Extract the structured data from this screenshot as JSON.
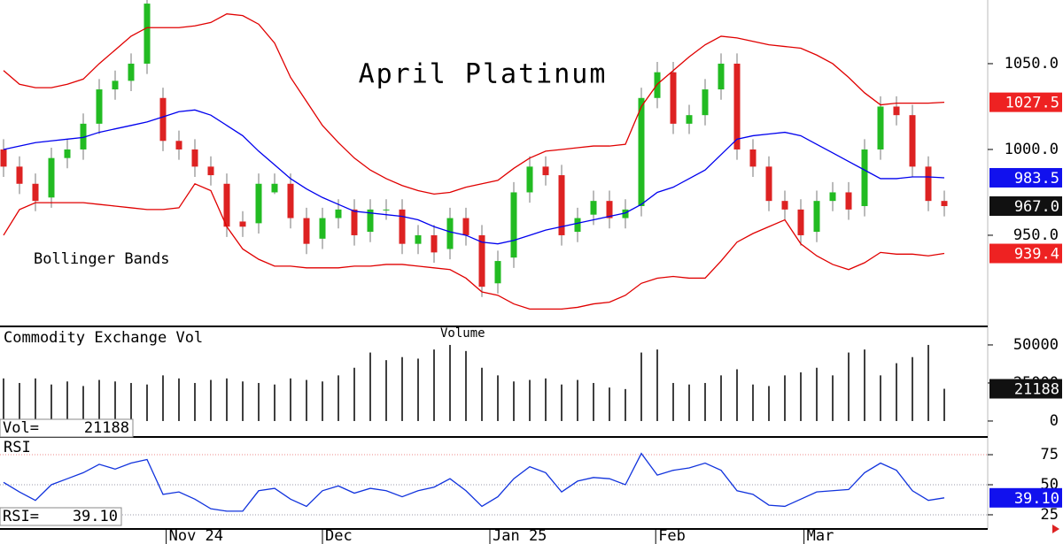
{
  "chart_data": [
    {
      "type": "candlestick",
      "title": "April Platinum",
      "annotation": "Bollinger Bands",
      "open": [
        1000,
        990,
        980,
        972,
        995,
        1000,
        1015,
        1035,
        1040,
        1050,
        1030,
        1005,
        1000,
        990,
        980,
        958,
        957,
        975,
        980,
        960,
        948,
        960,
        965,
        952,
        965,
        965,
        945,
        950,
        942,
        960,
        950,
        922,
        937,
        975,
        990,
        985,
        952,
        962,
        970,
        960,
        967,
        1030,
        1045,
        1015,
        1020,
        1035,
        1050,
        1000,
        990,
        970,
        965,
        952,
        970,
        975,
        967,
        1000,
        1025,
        1020,
        990,
        970
      ],
      "high": [
        1006,
        996,
        986,
        1001,
        1006,
        1021,
        1041,
        1046,
        1056,
        1091,
        1036,
        1011,
        1006,
        996,
        986,
        964,
        986,
        986,
        986,
        966,
        966,
        971,
        971,
        971,
        971,
        971,
        956,
        956,
        966,
        966,
        956,
        941,
        981,
        996,
        996,
        991,
        966,
        976,
        976,
        971,
        1036,
        1051,
        1051,
        1026,
        1041,
        1056,
        1056,
        1006,
        996,
        976,
        971,
        976,
        981,
        981,
        1006,
        1031,
        1031,
        1026,
        996,
        976
      ],
      "low": [
        984,
        974,
        964,
        966,
        989,
        994,
        1009,
        1029,
        1034,
        1044,
        999,
        994,
        984,
        979,
        949,
        949,
        951,
        974,
        954,
        939,
        942,
        954,
        944,
        946,
        959,
        939,
        939,
        934,
        936,
        944,
        914,
        916,
        931,
        969,
        979,
        944,
        946,
        956,
        954,
        954,
        961,
        1024,
        1009,
        1009,
        1014,
        1029,
        994,
        984,
        964,
        959,
        944,
        946,
        964,
        959,
        961,
        994,
        1014,
        984,
        964,
        961
      ],
      "close": [
        990,
        980,
        970,
        995,
        1000,
        1015,
        1035,
        1040,
        1050,
        1085,
        1005,
        1000,
        990,
        985,
        955,
        955,
        980,
        980,
        960,
        945,
        960,
        965,
        950,
        965,
        965,
        945,
        950,
        940,
        960,
        950,
        920,
        935,
        975,
        990,
        985,
        950,
        960,
        970,
        960,
        965,
        1030,
        1045,
        1015,
        1020,
        1035,
        1050,
        1000,
        990,
        970,
        965,
        950,
        970,
        975,
        965,
        1000,
        1025,
        1020,
        990,
        970,
        967
      ],
      "up_color": "#22bb22",
      "down_color": "#dd2222",
      "series": [
        {
          "color": "#e00000",
          "values": [
            1046,
            1038,
            1036,
            1036,
            1038,
            1041,
            1050,
            1058,
            1066,
            1071,
            1071,
            1071,
            1072,
            1074,
            1079,
            1078,
            1073,
            1062,
            1042,
            1028,
            1014,
            1004,
            995,
            988,
            983,
            979,
            976,
            974,
            975,
            978,
            980,
            982,
            989,
            995,
            999,
            1000,
            1001,
            1002,
            1002,
            1003,
            1025,
            1038,
            1046,
            1054,
            1061,
            1066,
            1065,
            1063,
            1061,
            1060,
            1059,
            1055,
            1050,
            1042,
            1033,
            1026,
            1027,
            1027,
            1027,
            1027.5
          ]
        },
        {
          "color": "#0000ee",
          "values": [
            1000,
            1002,
            1004,
            1005,
            1006,
            1007,
            1010,
            1012,
            1014,
            1016,
            1019,
            1022,
            1023,
            1020,
            1014,
            1008,
            999,
            991,
            983,
            977,
            972,
            968,
            964,
            963,
            962,
            961,
            959,
            955,
            952,
            950,
            946,
            945,
            947,
            950,
            953,
            955,
            957,
            959,
            961,
            963,
            968,
            975,
            978,
            983,
            988,
            997,
            1006,
            1008,
            1009,
            1010,
            1008,
            1003,
            998,
            993,
            988,
            983,
            983,
            984,
            984,
            983.5
          ]
        },
        {
          "color": "#e00000",
          "values": [
            950,
            965,
            969,
            969,
            969,
            969,
            968,
            967,
            966,
            965,
            965,
            966,
            980,
            976,
            955,
            942,
            936,
            932,
            932,
            931,
            931,
            931,
            932,
            932,
            933,
            933,
            932,
            931,
            930,
            925,
            917,
            915,
            910,
            907,
            907,
            907,
            908,
            910,
            911,
            915,
            922,
            925,
            926,
            925,
            925,
            935,
            946,
            951,
            955,
            959,
            945,
            938,
            933,
            930,
            934,
            940,
            939,
            939,
            938,
            939.4
          ]
        }
      ],
      "ylim": [
        897.4,
        1087.1
      ],
      "yticks": [
        {
          "value": 1050,
          "label": "1050.0"
        },
        {
          "value": 1000,
          "label": "1000.0"
        },
        {
          "value": 950,
          "label": "950.0"
        }
      ],
      "markers": [
        {
          "value": 1027.5,
          "label": "1027.5",
          "color": "#ee2222"
        },
        {
          "value": 983.5,
          "label": "983.5",
          "color": "#1111ee"
        },
        {
          "value": 967,
          "label": "967.0",
          "color": "#111111"
        },
        {
          "value": 939.4,
          "label": "939.4",
          "color": "#ee2222"
        }
      ],
      "x_labels": [
        {
          "index": 10.2,
          "label": "Nov 24"
        },
        {
          "index": 20,
          "label": "Dec"
        },
        {
          "index": 30.5,
          "label": "Jan 25"
        },
        {
          "index": 40.9,
          "label": "Feb"
        },
        {
          "index": 50.2,
          "label": "Mar"
        }
      ]
    },
    {
      "type": "bar",
      "title": "Commodity Exchange Vol",
      "subtitle": "Volume",
      "readout": "Vol=",
      "color": "#000000",
      "values": [
        28000,
        25000,
        28000,
        24000,
        26000,
        23000,
        27000,
        26000,
        25000,
        24000,
        30000,
        28000,
        25000,
        27000,
        28000,
        26000,
        25000,
        24000,
        28000,
        27000,
        26000,
        30000,
        35000,
        45000,
        40000,
        42000,
        41000,
        47000,
        50000,
        46000,
        35000,
        30000,
        26000,
        27000,
        28000,
        24000,
        27000,
        25000,
        22000,
        21000,
        45000,
        47000,
        25000,
        24000,
        25000,
        30000,
        34000,
        24000,
        23000,
        30000,
        32000,
        35000,
        30000,
        45000,
        47000,
        30000,
        38000,
        42000,
        50000,
        21188
      ],
      "ylim": [
        -9900,
        61600
      ],
      "yticks": [
        50000,
        25000,
        0
      ],
      "marker": {
        "value": 21188,
        "label": "21188",
        "color": "#111111"
      }
    },
    {
      "type": "line",
      "title": "RSI",
      "readout": "RSI=",
      "color": "#1133dd",
      "values": [
        52,
        44,
        37,
        50,
        55,
        60,
        67,
        63,
        68,
        71,
        42,
        44,
        38,
        30,
        28,
        28,
        45,
        47,
        38,
        32,
        45,
        49,
        43,
        47,
        45,
        40,
        45,
        48,
        55,
        45,
        32,
        40,
        55,
        65,
        60,
        44,
        53,
        56,
        55,
        50,
        76,
        58,
        62,
        64,
        68,
        62,
        45,
        42,
        33,
        32,
        38,
        44,
        45,
        46,
        60,
        68,
        62,
        45,
        37,
        39.1
      ],
      "ylim": [
        13.2,
        89
      ],
      "yticks": [
        75,
        50,
        25
      ],
      "grid": true,
      "marker": {
        "value": 39.1,
        "label": "39.10",
        "color": "#1111ee"
      }
    }
  ]
}
